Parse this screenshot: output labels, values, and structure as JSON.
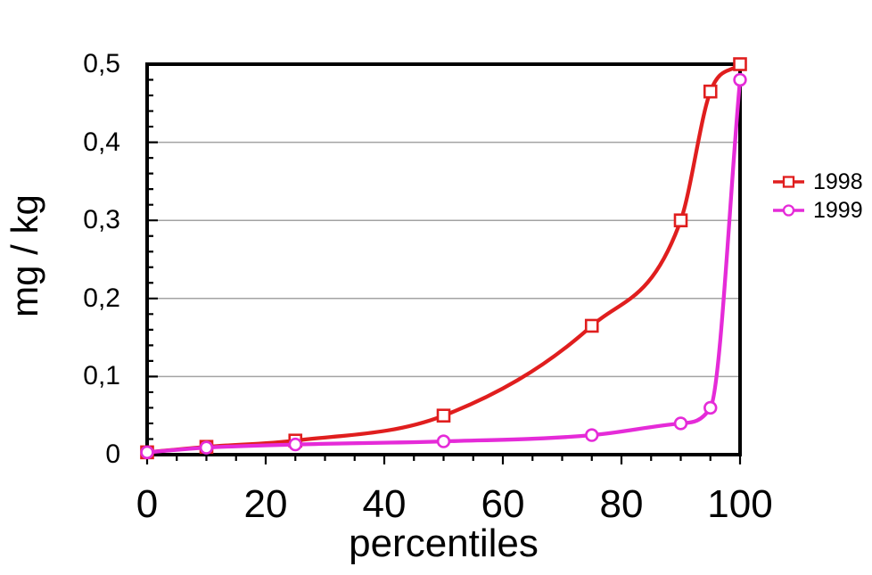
{
  "figure": {
    "background": "#ffffff",
    "frame_color": "#000000",
    "grid_color": "#a3a3a3",
    "tick_color": "#000000",
    "text_color": "#000000"
  },
  "chart_data": {
    "type": "line",
    "title": "",
    "xlabel": "percentiles",
    "ylabel": "mg / kg",
    "xlim": [
      0,
      100
    ],
    "ylim": [
      0,
      0.5
    ],
    "x_major_ticks": [
      0,
      20,
      40,
      60,
      80,
      100
    ],
    "x_tick_labels": [
      "0",
      "20",
      "40",
      "60",
      "80",
      "100"
    ],
    "x_minor_tick_step": 5,
    "y_major_ticks": [
      0,
      0.1,
      0.2,
      0.3,
      0.4,
      0.5
    ],
    "y_tick_labels": [
      "0",
      "0,1",
      "0,2",
      "0,3",
      "0,4",
      "0,5"
    ],
    "y_minor_tick_step": 0.02,
    "decimal_separator": ",",
    "grid": "horizontal-at-major-y",
    "legend_position": "right-outside",
    "series": [
      {
        "name": "1998",
        "color": "#e01e1e",
        "marker": "open-square",
        "x": [
          0,
          10,
          25,
          50,
          75,
          90,
          95,
          100
        ],
        "y": [
          0.003,
          0.01,
          0.018,
          0.05,
          0.165,
          0.3,
          0.465,
          0.5
        ]
      },
      {
        "name": "1999",
        "color": "#e52bd8",
        "marker": "open-circle",
        "x": [
          0,
          10,
          25,
          50,
          75,
          90,
          95,
          100
        ],
        "y": [
          0.003,
          0.009,
          0.013,
          0.017,
          0.025,
          0.04,
          0.06,
          0.48
        ]
      }
    ]
  }
}
